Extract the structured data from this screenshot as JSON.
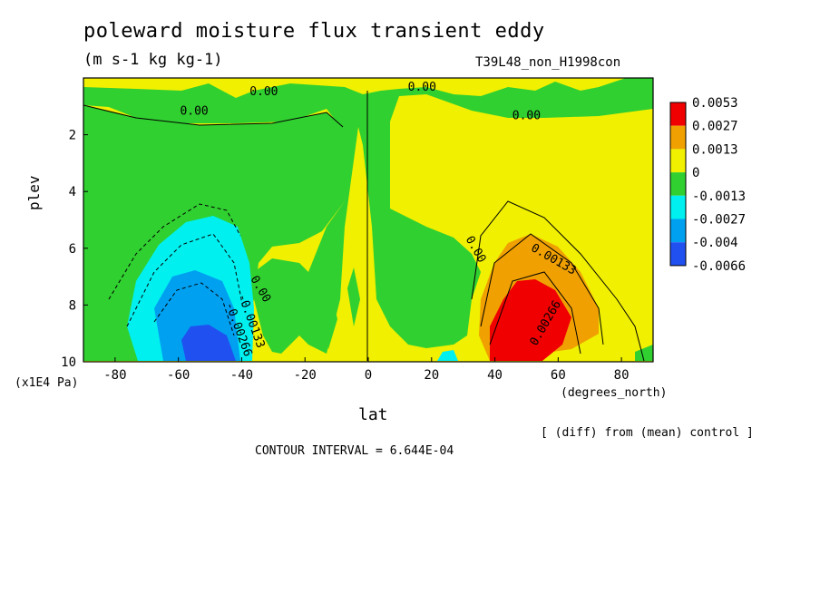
{
  "chart_data": {
    "type": "heatmap",
    "title": "poleward moisture flux transient eddy",
    "units": "(m s-1 kg kg-1)",
    "run_label": "T39L48_non_H1998con",
    "xlabel": "lat",
    "x_unit": "(degrees_north)",
    "ylabel": "plev",
    "y_unit": "(x1E4 Pa)",
    "x_ticks": [
      "-80",
      "-60",
      "-40",
      "-20",
      "0",
      "20",
      "40",
      "60",
      "80"
    ],
    "y_ticks": [
      "2",
      "4",
      "6",
      "8",
      "10"
    ],
    "xlim": [
      -90,
      90
    ],
    "ylim": [
      10,
      0
    ],
    "y_inverted": true,
    "note": "[ (diff) from (mean) control ]",
    "contour_interval": "CONTOUR INTERVAL = 6.644E-04",
    "colorbar": {
      "labels": [
        "0.0053",
        "0.0027",
        "0.0013",
        "0",
        "-0.0013",
        "-0.0027",
        "-0.004",
        "-0.0066"
      ],
      "colors": [
        "#f00000",
        "#f0a000",
        "#f0f000",
        "#30d030",
        "#00f0f0",
        "#00a0f0",
        "#2050f0"
      ]
    },
    "contour_labels": [
      "0.00",
      "0.00",
      "0.00",
      "0.00",
      "0.00",
      "0.00",
      "0.00133",
      "-0.00133",
      "-0.00266",
      "0.00266"
    ],
    "features": [
      {
        "name": "positive maximum",
        "lat": 50,
        "plev": 9.2,
        "value": 0.0053
      },
      {
        "name": "negative minimum",
        "lat": -50,
        "plev": 9.3,
        "value": -0.0066
      }
    ]
  }
}
